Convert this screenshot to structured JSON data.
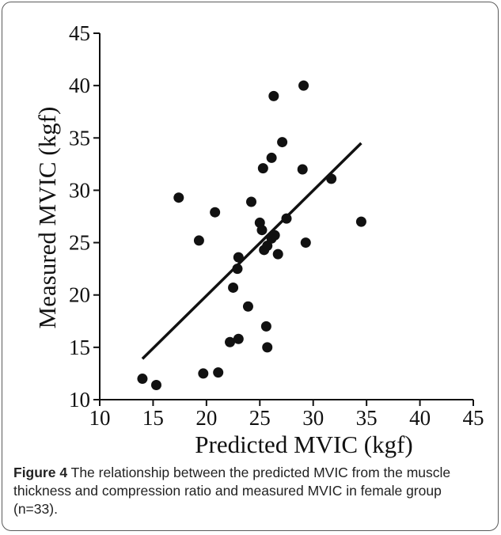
{
  "caption": {
    "label": "Figure 4",
    "text": " The relationship between the predicted MVIC from the muscle thickness and compression ratio and measured MVIC in female group (n=33)."
  },
  "colors": {
    "points": "#111111",
    "line": "#111111",
    "axes": "#111111"
  },
  "chart_data": {
    "type": "scatter",
    "title": "",
    "xlabel": "Predicted MVIC (kgf)",
    "ylabel": "Measured MVIC (kgf)",
    "xlim": [
      10,
      45
    ],
    "ylim": [
      10,
      45
    ],
    "xticks": [
      10,
      15,
      20,
      25,
      30,
      35,
      40,
      45
    ],
    "yticks": [
      10,
      15,
      20,
      25,
      30,
      35,
      40,
      45
    ],
    "grid": false,
    "points": [
      {
        "x": 14.0,
        "y": 12.0
      },
      {
        "x": 15.3,
        "y": 11.4
      },
      {
        "x": 17.4,
        "y": 29.3
      },
      {
        "x": 19.3,
        "y": 25.2
      },
      {
        "x": 19.7,
        "y": 12.5
      },
      {
        "x": 20.8,
        "y": 27.9
      },
      {
        "x": 21.1,
        "y": 12.6
      },
      {
        "x": 22.2,
        "y": 15.5
      },
      {
        "x": 22.5,
        "y": 20.7
      },
      {
        "x": 22.9,
        "y": 22.5
      },
      {
        "x": 23.0,
        "y": 23.6
      },
      {
        "x": 23.0,
        "y": 15.8
      },
      {
        "x": 23.9,
        "y": 18.9
      },
      {
        "x": 24.2,
        "y": 28.9
      },
      {
        "x": 25.0,
        "y": 26.9
      },
      {
        "x": 25.2,
        "y": 26.2
      },
      {
        "x": 25.3,
        "y": 32.1
      },
      {
        "x": 25.4,
        "y": 24.3
      },
      {
        "x": 25.6,
        "y": 17.0
      },
      {
        "x": 25.7,
        "y": 15.0
      },
      {
        "x": 25.7,
        "y": 24.7
      },
      {
        "x": 26.1,
        "y": 33.1
      },
      {
        "x": 26.1,
        "y": 25.4
      },
      {
        "x": 26.3,
        "y": 39.0
      },
      {
        "x": 26.4,
        "y": 25.7
      },
      {
        "x": 26.7,
        "y": 23.9
      },
      {
        "x": 27.1,
        "y": 34.6
      },
      {
        "x": 27.5,
        "y": 27.3
      },
      {
        "x": 29.0,
        "y": 32.0
      },
      {
        "x": 29.1,
        "y": 40.0
      },
      {
        "x": 29.3,
        "y": 25.0
      },
      {
        "x": 31.7,
        "y": 31.1
      },
      {
        "x": 34.5,
        "y": 27.0
      }
    ],
    "fit_line": {
      "x": [
        14.0,
        34.5
      ],
      "y": [
        13.9,
        34.5
      ]
    }
  }
}
